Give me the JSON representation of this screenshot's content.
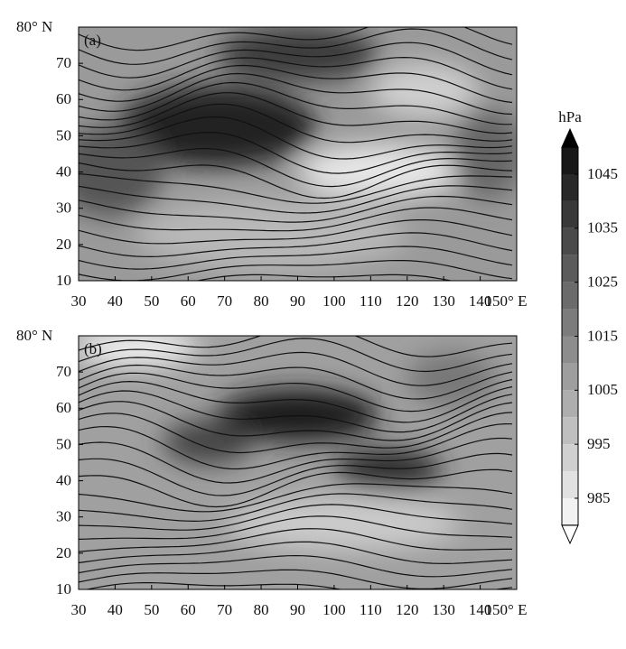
{
  "panels": [
    {
      "label": "(a)"
    },
    {
      "label": "(b)"
    }
  ],
  "lon_ticks": [
    30,
    40,
    50,
    60,
    70,
    80,
    90,
    100,
    110,
    120,
    130,
    140,
    {
      "value": 150,
      "label": "150° E"
    }
  ],
  "lat_ticks": [
    10,
    20,
    30,
    40,
    50,
    60,
    70,
    {
      "value": 80,
      "label": "80° N"
    }
  ],
  "colorbar": {
    "unit": "hPa",
    "ticks": [
      985,
      995,
      1005,
      1015,
      1025,
      1035,
      1045
    ]
  }
}
